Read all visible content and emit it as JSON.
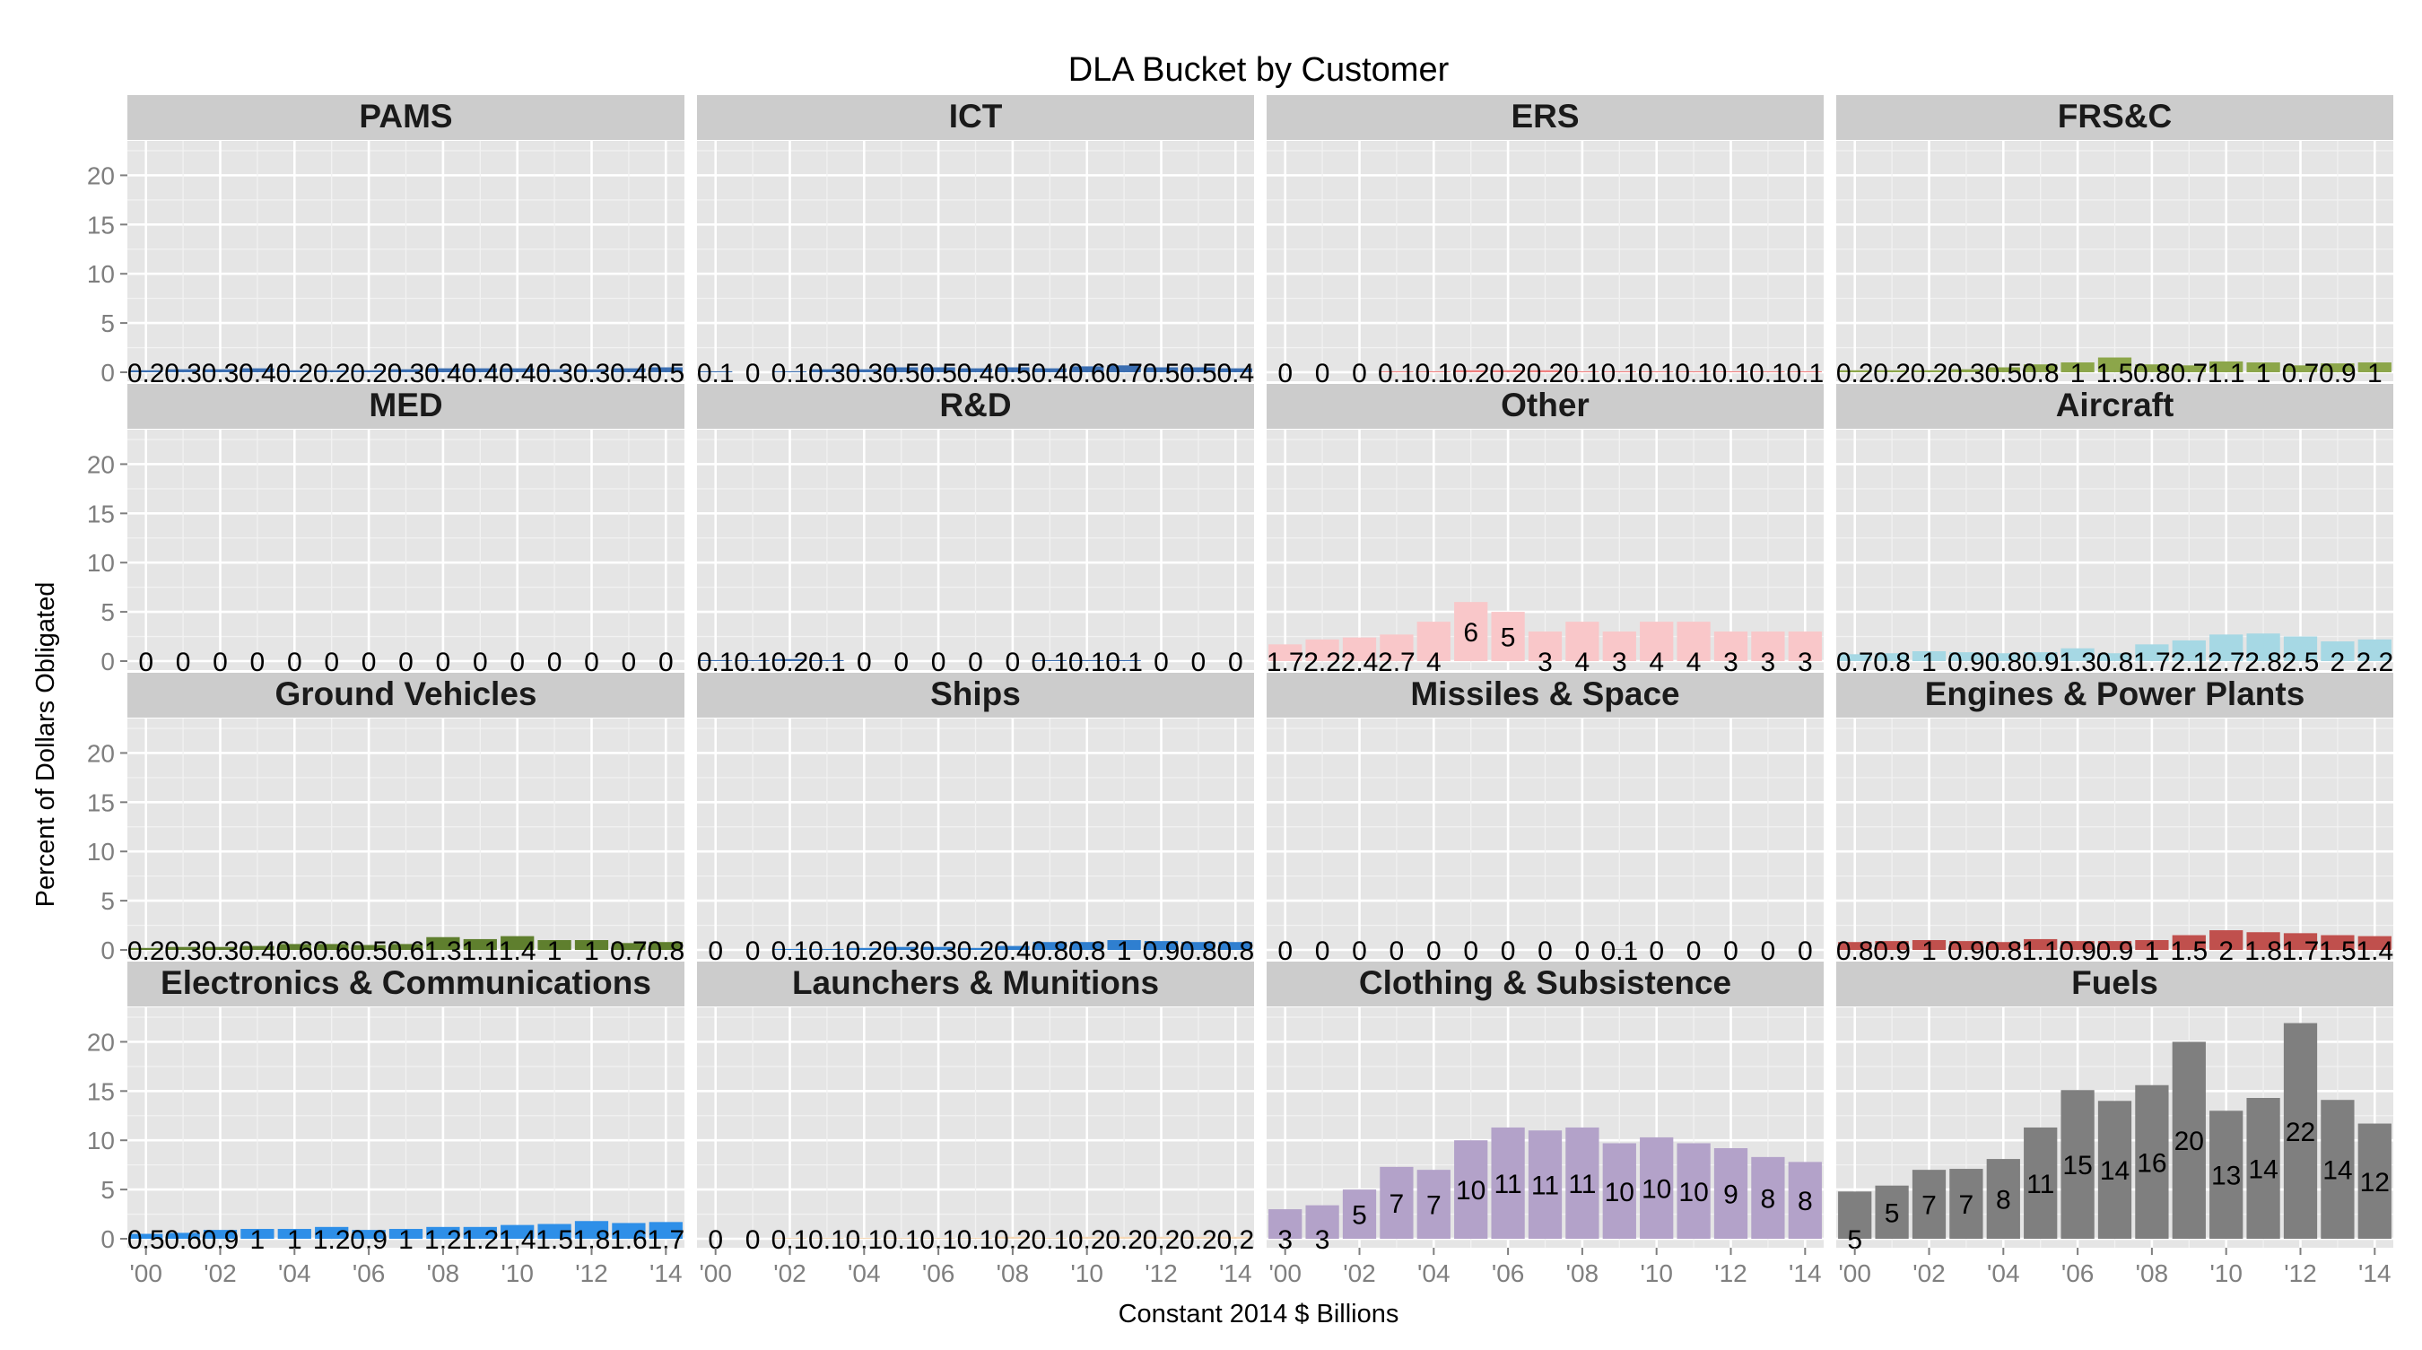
{
  "chart_data": {
    "type": "bar",
    "title": "DLA Bucket by Customer",
    "xlabel": "Constant 2014 $ Billions",
    "ylabel": "Percent of Dollars Obligated",
    "ylim": [
      0,
      23.5
    ],
    "y_ticks": [
      "0",
      "5",
      "10",
      "15",
      "20"
    ],
    "x_tick_labels": [
      "'00",
      "'02",
      "'04",
      "'06",
      "'08",
      "'10",
      "'12",
      "'14"
    ],
    "x": [
      2000,
      2001,
      2002,
      2003,
      2004,
      2005,
      2006,
      2007,
      2008,
      2009,
      2010,
      2011,
      2012,
      2013,
      2014
    ],
    "grid": true,
    "legend": "none",
    "layout": "4x4 facet grid",
    "panels": [
      {
        "name": "PAMS",
        "color": "#3C6FB2",
        "values": [
          0.2,
          0.3,
          0.3,
          0.4,
          0.2,
          0.2,
          0.2,
          0.3,
          0.4,
          0.4,
          0.4,
          0.3,
          0.3,
          0.4,
          0.5
        ],
        "labels": [
          "0.2",
          "0.3",
          "0.3",
          "0.4",
          "0.2",
          "0.2",
          "0.2",
          "0.3",
          "0.4",
          "0.4",
          "0.4",
          "0.3",
          "0.3",
          "0.4",
          "0.5"
        ]
      },
      {
        "name": "ICT",
        "color": "#3C6FB2",
        "values": [
          0.1,
          0,
          0.1,
          0.3,
          0.3,
          0.5,
          0.5,
          0.4,
          0.5,
          0.4,
          0.6,
          0.7,
          0.5,
          0.5,
          0.4
        ],
        "labels": [
          "0.1",
          "0",
          "0.1",
          "0.3",
          "0.3",
          "0.5",
          "0.5",
          "0.4",
          "0.5",
          "0.4",
          "0.6",
          "0.7",
          "0.5",
          "0.5",
          "0.4"
        ]
      },
      {
        "name": "ERS",
        "color": "#F08080",
        "values": [
          0,
          0,
          0,
          0.1,
          0.1,
          0.2,
          0.2,
          0.2,
          0.1,
          0.1,
          0.1,
          0.1,
          0.1,
          0.1,
          0.1
        ],
        "labels": [
          "0",
          "0",
          "0",
          "0.1",
          "0.1",
          "0.2",
          "0.2",
          "0.2",
          "0.1",
          "0.1",
          "0.1",
          "0.1",
          "0.1",
          "0.1",
          "0.1"
        ]
      },
      {
        "name": "FRS&C",
        "color": "#8CA64A",
        "values": [
          0.2,
          0.2,
          0.2,
          0.3,
          0.5,
          0.8,
          1,
          1.5,
          0.8,
          0.7,
          1.1,
          1,
          0.7,
          0.9,
          1
        ],
        "labels": [
          "0.2",
          "0.2",
          "0.2",
          "0.3",
          "0.5",
          "0.8",
          "1",
          "1.5",
          "0.8",
          "0.7",
          "1.1",
          "1",
          "0.7",
          "0.9",
          "1"
        ]
      },
      {
        "name": "MED",
        "color": "#7A9A3A",
        "values": [
          0,
          0,
          0,
          0,
          0,
          0,
          0,
          0,
          0,
          0,
          0,
          0,
          0,
          0,
          0
        ],
        "labels": [
          "0",
          "0",
          "0",
          "0",
          "0",
          "0",
          "0",
          "0",
          "0",
          "0",
          "0",
          "0",
          "0",
          "0",
          "0"
        ]
      },
      {
        "name": "R&D",
        "color": "#3C6FB2",
        "values": [
          0.1,
          0.1,
          0.2,
          0.1,
          0,
          0,
          0,
          0,
          0,
          0.1,
          0.1,
          0.1,
          0,
          0,
          0
        ],
        "labels": [
          "0.1",
          "0.1",
          "0.2",
          "0.1",
          "0",
          "0",
          "0",
          "0",
          "0",
          "0.1",
          "0.1",
          "0.1",
          "0",
          "0",
          "0"
        ]
      },
      {
        "name": "Other",
        "color": "#F9C7C9",
        "values": [
          1.7,
          2.2,
          2.4,
          2.7,
          4,
          6,
          5,
          3,
          4,
          3,
          4,
          4,
          3,
          3,
          3
        ],
        "labels": [
          "1.7",
          "2.2",
          "2.4",
          "2.7",
          "4",
          "6",
          "5",
          "3",
          "4",
          "3",
          "4",
          "4",
          "3",
          "3",
          "3"
        ]
      },
      {
        "name": "Aircraft",
        "color": "#A6D8E4",
        "values": [
          0.7,
          0.8,
          1,
          0.9,
          0.8,
          0.9,
          1.3,
          0.8,
          1.7,
          2.1,
          2.7,
          2.8,
          2.5,
          2,
          2.2
        ],
        "labels": [
          "0.7",
          "0.8",
          "1",
          "0.9",
          "0.8",
          "0.9",
          "1.3",
          "0.8",
          "1.7",
          "2.1",
          "2.7",
          "2.8",
          "2.5",
          "2",
          "2.2"
        ]
      },
      {
        "name": "Ground Vehicles",
        "color": "#5F7F2E",
        "values": [
          0.2,
          0.3,
          0.3,
          0.4,
          0.6,
          0.6,
          0.5,
          0.6,
          1.3,
          1.1,
          1.4,
          1,
          1,
          0.7,
          0.8
        ],
        "labels": [
          "0.2",
          "0.3",
          "0.3",
          "0.4",
          "0.6",
          "0.6",
          "0.5",
          "0.6",
          "1.3",
          "1.1",
          "1.4",
          "1",
          "1",
          "0.7",
          "0.8"
        ]
      },
      {
        "name": "Ships",
        "color": "#2F7FD0",
        "values": [
          0,
          0,
          0.1,
          0.1,
          0.2,
          0.3,
          0.3,
          0.2,
          0.4,
          0.8,
          0.8,
          1,
          0.9,
          0.8,
          0.8
        ],
        "labels": [
          "0",
          "0",
          "0.1",
          "0.1",
          "0.2",
          "0.3",
          "0.3",
          "0.2",
          "0.4",
          "0.8",
          "0.8",
          "1",
          "0.9",
          "0.8",
          "0.8"
        ]
      },
      {
        "name": "Missiles & Space",
        "color": "#A6A6A6",
        "values": [
          0,
          0,
          0,
          0,
          0,
          0,
          0,
          0,
          0,
          0.1,
          0,
          0,
          0,
          0,
          0
        ],
        "labels": [
          "0",
          "0",
          "0",
          "0",
          "0",
          "0",
          "0",
          "0",
          "0",
          "0.1",
          "0",
          "0",
          "0",
          "0",
          "0"
        ]
      },
      {
        "name": "Engines & Power Plants",
        "color": "#C0504D",
        "values": [
          0.8,
          0.9,
          1,
          0.9,
          0.8,
          1.1,
          0.9,
          0.9,
          1,
          1.5,
          2,
          1.8,
          1.7,
          1.5,
          1.4
        ],
        "labels": [
          "0.8",
          "0.9",
          "1",
          "0.9",
          "0.8",
          "1.1",
          "0.9",
          "0.9",
          "1",
          "1.5",
          "2",
          "1.8",
          "1.7",
          "1.5",
          "1.4"
        ]
      },
      {
        "name": "Electronics & Communications",
        "color": "#2E8FE8",
        "values": [
          0.5,
          0.6,
          0.9,
          1,
          1,
          1.2,
          0.9,
          1,
          1.2,
          1.2,
          1.4,
          1.5,
          1.8,
          1.6,
          1.7
        ],
        "labels": [
          "0.5",
          "0.6",
          "0.9",
          "1",
          "1",
          "1.2",
          "0.9",
          "1",
          "1.2",
          "1.2",
          "1.4",
          "1.5",
          "1.8",
          "1.6",
          "1.7"
        ]
      },
      {
        "name": "Launchers & Munitions",
        "color": "#F5D9B8",
        "values": [
          0,
          0,
          0.1,
          0.1,
          0.1,
          0.1,
          0.1,
          0.1,
          0.2,
          0.1,
          0.2,
          0.2,
          0.2,
          0.2,
          0.2
        ],
        "labels": [
          "0",
          "0",
          "0.1",
          "0.1",
          "0.1",
          "0.1",
          "0.1",
          "0.1",
          "0.2",
          "0.1",
          "0.2",
          "0.2",
          "0.2",
          "0.2",
          "0.2"
        ]
      },
      {
        "name": "Clothing & Subsistence",
        "color": "#B3A2C9",
        "values": [
          3,
          3.4,
          5,
          7.3,
          7,
          10,
          11.3,
          11,
          11.3,
          9.7,
          10.3,
          9.7,
          9.2,
          8.3,
          7.8
        ],
        "labels": [
          "3",
          "3",
          "5",
          "7",
          "7",
          "10",
          "11",
          "11",
          "11",
          "10",
          "10",
          "10",
          "9",
          "8",
          "8"
        ]
      },
      {
        "name": "Fuels",
        "color": "#7F7F7F",
        "values": [
          4.8,
          5.4,
          7,
          7.1,
          8.1,
          11.3,
          15.1,
          14,
          15.6,
          20,
          13,
          14.3,
          21.9,
          14.1,
          11.7
        ],
        "labels": [
          "5",
          "5",
          "7",
          "7",
          "8",
          "11",
          "15",
          "14",
          "16",
          "20",
          "13",
          "14",
          "22",
          "14",
          "12"
        ]
      }
    ]
  }
}
